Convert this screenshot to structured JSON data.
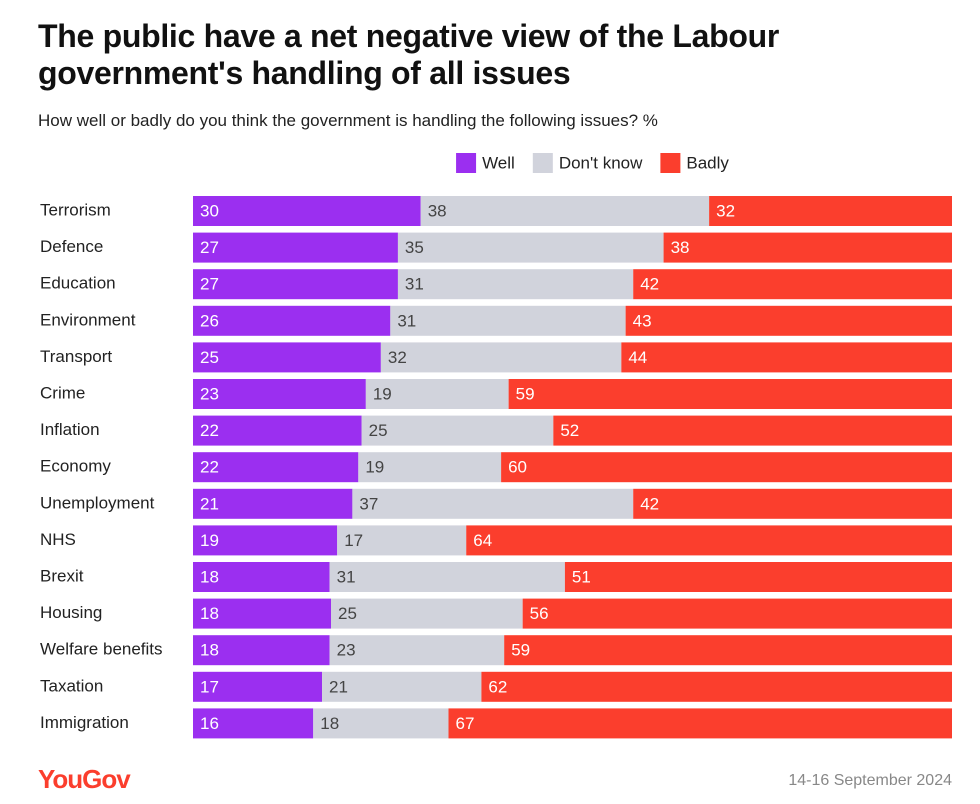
{
  "chart_data": {
    "type": "bar",
    "orientation": "horizontal",
    "stacked": "percent",
    "title": "The public have a net negative view of the Labour government's handling of all issues",
    "subtitle": "How well or badly do you think the government is handling the following issues? %",
    "categories": [
      "Terrorism",
      "Defence",
      "Education",
      "Environment",
      "Transport",
      "Crime",
      "Inflation",
      "Economy",
      "Unemployment",
      "NHS",
      "Brexit",
      "Housing",
      "Welfare benefits",
      "Taxation",
      "Immigration"
    ],
    "series": [
      {
        "name": "Well",
        "color": "#9b2ff0",
        "values": [
          30,
          27,
          27,
          26,
          25,
          23,
          22,
          22,
          21,
          19,
          18,
          18,
          18,
          17,
          16
        ]
      },
      {
        "name": "Don't know",
        "color": "#d1d3dc",
        "values": [
          38,
          35,
          31,
          31,
          32,
          19,
          25,
          19,
          37,
          17,
          31,
          25,
          23,
          21,
          18
        ]
      },
      {
        "name": "Badly",
        "color": "#fb3e2d",
        "values": [
          32,
          38,
          42,
          43,
          44,
          59,
          52,
          60,
          42,
          64,
          51,
          56,
          59,
          62,
          67
        ]
      }
    ],
    "legend": "top",
    "logo": "YouGov",
    "date": "14-16 September 2024"
  }
}
